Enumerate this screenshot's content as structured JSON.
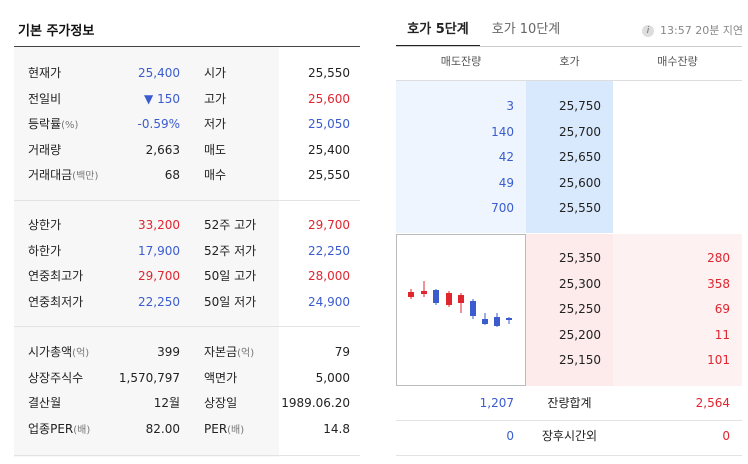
{
  "left": {
    "title": "기본 주가정보",
    "rows1": [
      {
        "l1": "현재가",
        "l1s": "",
        "v1": "25,400",
        "c1": "blue",
        "l2": "시가",
        "l2s": "",
        "v2": "25,550",
        "c2": "dark"
      },
      {
        "l1": "전일비",
        "l1s": "",
        "v1": "▼ 150",
        "c1": "blue",
        "l2": "고가",
        "l2s": "",
        "v2": "25,600",
        "c2": "red"
      },
      {
        "l1": "등락률",
        "l1s": "(%)",
        "v1": "-0.59%",
        "c1": "blue",
        "l2": "저가",
        "l2s": "",
        "v2": "25,050",
        "c2": "blue"
      },
      {
        "l1": "거래량",
        "l1s": "",
        "v1": "2,663",
        "c1": "dark",
        "l2": "매도",
        "l2s": "",
        "v2": "25,400",
        "c2": "dark"
      },
      {
        "l1": "거래대금",
        "l1s": "(백만)",
        "v1": "68",
        "c1": "dark",
        "l2": "매수",
        "l2s": "",
        "v2": "25,550",
        "c2": "dark"
      }
    ],
    "rows2": [
      {
        "l1": "상한가",
        "l1s": "",
        "v1": "33,200",
        "c1": "red",
        "l2": "52주 고가",
        "l2s": "",
        "v2": "29,700",
        "c2": "red"
      },
      {
        "l1": "하한가",
        "l1s": "",
        "v1": "17,900",
        "c1": "blue",
        "l2": "52주 저가",
        "l2s": "",
        "v2": "22,250",
        "c2": "blue"
      },
      {
        "l1": "연중최고가",
        "l1s": "",
        "v1": "29,700",
        "c1": "red",
        "l2": "50일 고가",
        "l2s": "",
        "v2": "28,000",
        "c2": "red"
      },
      {
        "l1": "연중최저가",
        "l1s": "",
        "v1": "22,250",
        "c1": "blue",
        "l2": "50일 저가",
        "l2s": "",
        "v2": "24,900",
        "c2": "blue"
      }
    ],
    "rows3": [
      {
        "l1": "시가총액",
        "l1s": "(억)",
        "v1": "399",
        "c1": "dark",
        "l2": "자본금",
        "l2s": "(억)",
        "v2": "79",
        "c2": "dark"
      },
      {
        "l1": "상장주식수",
        "l1s": "",
        "v1": "1,570,797",
        "c1": "dark",
        "l2": "액면가",
        "l2s": "",
        "v2": "5,000",
        "c2": "dark"
      },
      {
        "l1": "결산월",
        "l1s": "",
        "v1": "12월",
        "c1": "dark",
        "l2": "상장일",
        "l2s": "",
        "v2": "1989.06.20",
        "c2": "dark"
      },
      {
        "l1": "업종PER",
        "l1s": "(배)",
        "v1": "82.00",
        "c1": "dark",
        "l2": "PER",
        "l2s": "(배)",
        "v2": "14.8",
        "c2": "dark"
      }
    ]
  },
  "right": {
    "tab_active": "호가 5단계",
    "tab_inactive": "호가 10단계",
    "info_icon": "i",
    "delay_text": "13:57 20분 지연",
    "headers": {
      "ask": "매도잔량",
      "price": "호가",
      "bid": "매수잔량"
    },
    "asks": [
      {
        "qty": "3",
        "price": "25,750"
      },
      {
        "qty": "140",
        "price": "25,700"
      },
      {
        "qty": "42",
        "price": "25,650"
      },
      {
        "qty": "49",
        "price": "25,600"
      },
      {
        "qty": "700",
        "price": "25,550"
      }
    ],
    "bids": [
      {
        "price": "25,350",
        "qty": "280"
      },
      {
        "price": "25,300",
        "qty": "358"
      },
      {
        "price": "25,250",
        "qty": "69"
      },
      {
        "price": "25,200",
        "qty": "11"
      },
      {
        "price": "25,150",
        "qty": "101"
      }
    ],
    "summary": {
      "total_ask": "1,207",
      "total_label": "잔량합계",
      "total_bid": "2,564",
      "after_ask": "0",
      "after_label": "장후시간외",
      "after_bid": "0"
    },
    "colors": {
      "up": "#e0252f",
      "down": "#3b5ccf"
    }
  }
}
